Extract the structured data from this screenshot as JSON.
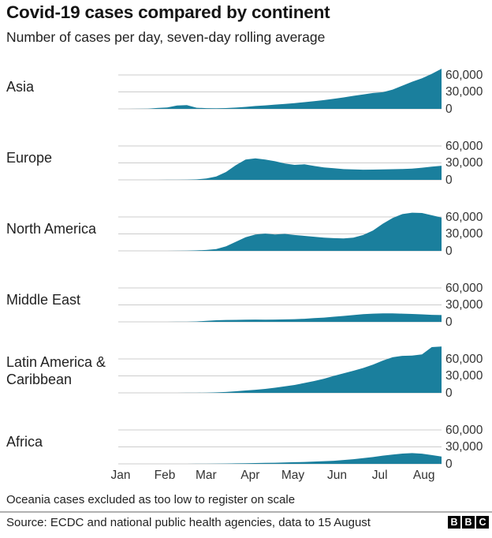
{
  "header": {
    "title": "Covid-19 cases compared by continent",
    "subtitle": "Number of cases per day, seven-day rolling average"
  },
  "footer": {
    "footnote": "Oceania cases excluded as too low to register on scale",
    "source": "Source: ECDC and national public health agencies, data to 15 August",
    "logo_letters": [
      "B",
      "B",
      "C"
    ]
  },
  "colors": {
    "area_fill": "#1A7F9D",
    "gridline": "#CCCCCC",
    "text": "#222222",
    "divider": "#B0B0B0",
    "logo_bg": "#000000",
    "logo_text": "#FFFFFF"
  },
  "chart_data": {
    "type": "area",
    "title": "Covid-19 cases compared by continent",
    "subtitle": "Number of cases per day, seven-day rolling average",
    "x_start": "Jan 1",
    "x_end": "Aug 15",
    "months": [
      "Jan",
      "Feb",
      "Mar",
      "Apr",
      "May",
      "Jun",
      "Jul",
      "Aug"
    ],
    "month_start_days": [
      0,
      31,
      60,
      91,
      121,
      152,
      182,
      213
    ],
    "total_days": 227,
    "y_ticks": [
      "60,000",
      "30,000",
      "0"
    ],
    "y_tick_values": [
      60000,
      30000,
      0
    ],
    "ylim": [
      0,
      90000
    ],
    "grid": true,
    "legend_position": "none",
    "note": "values are cases per day (7-day rolling average), sampled ~weekly Jan 1 - Aug 15",
    "series": [
      {
        "name": "Asia",
        "values": [
          0,
          0,
          100,
          400,
          1500,
          2500,
          6000,
          6500,
          2000,
          1200,
          1100,
          1400,
          2200,
          3500,
          5000,
          6200,
          7500,
          8800,
          10200,
          11800,
          13500,
          15500,
          17800,
          20300,
          23000,
          25500,
          28000,
          29500,
          34000,
          41000,
          48000,
          54000,
          62000,
          71000
        ]
      },
      {
        "name": "Europe",
        "values": [
          0,
          0,
          0,
          0,
          0,
          100,
          200,
          400,
          900,
          2500,
          6000,
          14000,
          26000,
          36000,
          38000,
          36000,
          33000,
          29000,
          26500,
          27500,
          24500,
          22000,
          20500,
          19000,
          18500,
          18000,
          18200,
          18500,
          18800,
          19200,
          20000,
          21500,
          23500,
          25000
        ]
      },
      {
        "name": "North America",
        "values": [
          0,
          0,
          0,
          0,
          0,
          0,
          100,
          300,
          800,
          1500,
          3000,
          8000,
          16000,
          24000,
          29000,
          30500,
          29000,
          30000,
          28000,
          26500,
          25000,
          23500,
          22500,
          22000,
          23500,
          28000,
          36000,
          48000,
          58000,
          65000,
          67500,
          67000,
          63000,
          59000
        ]
      },
      {
        "name": "Middle East",
        "values": [
          0,
          0,
          0,
          0,
          0,
          0,
          100,
          200,
          700,
          1800,
          2800,
          3300,
          3500,
          3800,
          4000,
          3900,
          4000,
          4300,
          4800,
          5500,
          6500,
          7500,
          9000,
          10500,
          12000,
          13500,
          14500,
          15000,
          15000,
          14500,
          14000,
          13200,
          12400,
          12000
        ]
      },
      {
        "name": "Latin America & Caribbean",
        "values": [
          0,
          0,
          0,
          0,
          0,
          0,
          0,
          100,
          200,
          400,
          800,
          1500,
          2800,
          4200,
          5500,
          7000,
          9000,
          11500,
          14000,
          17500,
          21000,
          25000,
          30000,
          34500,
          39000,
          44000,
          50000,
          57000,
          63000,
          65500,
          66000,
          68000,
          81000,
          82000
        ]
      },
      {
        "name": "Africa",
        "values": [
          0,
          0,
          0,
          0,
          0,
          0,
          0,
          0,
          100,
          200,
          300,
          500,
          800,
          1100,
          1400,
          1700,
          2000,
          2400,
          2900,
          3400,
          4000,
          4700,
          5500,
          6800,
          8200,
          10000,
          12000,
          14500,
          16500,
          18200,
          19000,
          18000,
          15500,
          13000
        ]
      }
    ]
  }
}
